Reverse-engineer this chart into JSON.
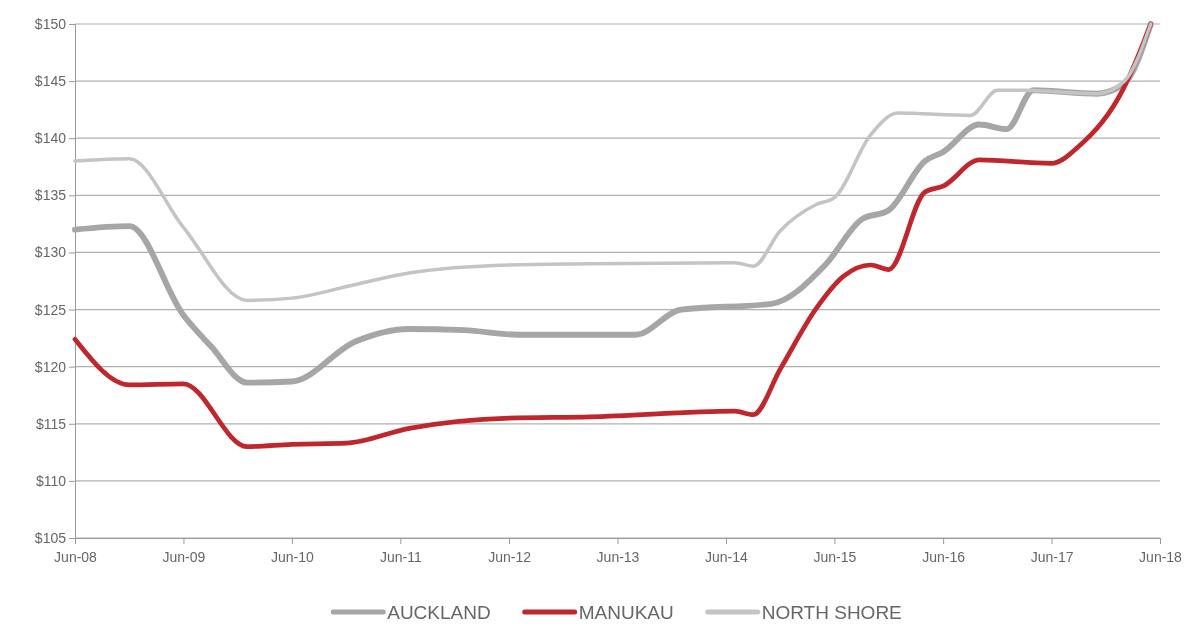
{
  "chart_data": {
    "type": "line",
    "ylim": [
      105,
      150
    ],
    "yticks": [
      {
        "value": 105,
        "label": "$105"
      },
      {
        "value": 110,
        "label": "$110"
      },
      {
        "value": 115,
        "label": "$115"
      },
      {
        "value": 120,
        "label": "$120"
      },
      {
        "value": 125,
        "label": "$125"
      },
      {
        "value": 130,
        "label": "$130"
      },
      {
        "value": 135,
        "label": "$135"
      },
      {
        "value": 140,
        "label": "$140"
      },
      {
        "value": 145,
        "label": "$145"
      },
      {
        "value": 150,
        "label": "$150"
      }
    ],
    "xlim": [
      "2008-06",
      "2018-06"
    ],
    "xticks": [
      {
        "value": "2008-06",
        "label": "Jun-08"
      },
      {
        "value": "2009-06",
        "label": "Jun-09"
      },
      {
        "value": "2010-06",
        "label": "Jun-10"
      },
      {
        "value": "2011-06",
        "label": "Jun-11"
      },
      {
        "value": "2012-06",
        "label": "Jun-12"
      },
      {
        "value": "2013-06",
        "label": "Jun-13"
      },
      {
        "value": "2014-06",
        "label": "Jun-14"
      },
      {
        "value": "2015-06",
        "label": "Jun-15"
      },
      {
        "value": "2016-06",
        "label": "Jun-16"
      },
      {
        "value": "2017-06",
        "label": "Jun-17"
      },
      {
        "value": "2018-06",
        "label": "Jun-18"
      }
    ],
    "grid": "y",
    "legend": "bottom",
    "marker": "none",
    "line_style": "solid",
    "series": [
      {
        "name": "AUCKLAND",
        "color": "#a6a6a6",
        "x": [
          "2008-06",
          "2008-12",
          "2009-06",
          "2009-09",
          "2010-01",
          "2010-06",
          "2011-01",
          "2011-07",
          "2012-01",
          "2012-07",
          "2013-03",
          "2013-08",
          "2014-01",
          "2014-11",
          "2015-05",
          "2015-09",
          "2015-12",
          "2016-04",
          "2016-06",
          "2016-10",
          "2017-01",
          "2017-04",
          "2017-11",
          "2018-02",
          "2018-05"
        ],
        "values": [
          132.0,
          132.3,
          124.5,
          121.8,
          118.6,
          118.7,
          122.2,
          123.3,
          123.2,
          122.8,
          122.8,
          122.8,
          125.0,
          125.5,
          128.9,
          132.9,
          133.7,
          138.0,
          138.8,
          141.2,
          140.8,
          144.2,
          143.9,
          144.8,
          150.0
        ]
      },
      {
        "name": "MANUKAU",
        "color": "#c0272d",
        "x": [
          "2008-06",
          "2008-12",
          "2009-06",
          "2010-01",
          "2010-06",
          "2010-12",
          "2011-07",
          "2012-06",
          "2013-03",
          "2014-07",
          "2014-09",
          "2014-12",
          "2015-04",
          "2015-07",
          "2015-10",
          "2015-12",
          "2016-04",
          "2016-06",
          "2016-10",
          "2017-06",
          "2017-09",
          "2018-02",
          "2018-05"
        ],
        "values": [
          122.4,
          118.4,
          118.5,
          113.0,
          113.2,
          113.3,
          114.6,
          115.5,
          115.6,
          116.1,
          115.8,
          119.8,
          125.1,
          127.9,
          128.9,
          128.5,
          135.3,
          135.8,
          138.1,
          137.8,
          139.3,
          144.5,
          150.0
        ]
      },
      {
        "name": "NORTH SHORE",
        "color": "#c4c4c4",
        "x": [
          "2008-06",
          "2008-12",
          "2009-06",
          "2010-01",
          "2010-06",
          "2011-01",
          "2011-07",
          "2012-06",
          "2013-03",
          "2014-07",
          "2014-09",
          "2014-12",
          "2015-04",
          "2015-06",
          "2015-10",
          "2016-01",
          "2016-09",
          "2016-12",
          "2017-03",
          "2017-11",
          "2018-02",
          "2018-05"
        ],
        "values": [
          138.0,
          138.2,
          132.2,
          125.8,
          126.0,
          127.2,
          128.2,
          128.9,
          129.0,
          129.1,
          128.8,
          131.9,
          134.2,
          134.8,
          140.3,
          142.2,
          142.0,
          144.2,
          144.2,
          143.9,
          145.0,
          150.0
        ]
      }
    ]
  }
}
